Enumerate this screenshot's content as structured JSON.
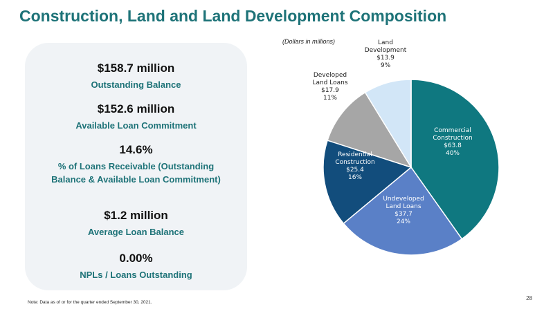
{
  "slide": {
    "title": "Construction, Land and Land Development Composition",
    "units_note": "(Dollars in millions)",
    "footnote": "Note: Data as of or for the quarter ended September 30, 2021.",
    "page_number": "28"
  },
  "stats": [
    {
      "value": "$158.7 million",
      "label": "Outstanding Balance"
    },
    {
      "value": "$152.6 million",
      "label": "Available Loan Commitment"
    },
    {
      "value": "14.6%",
      "label": "% of Loans Receivable (Outstanding Balance & Available Loan Commitment)"
    },
    {
      "value": "$1.2 million",
      "label": "Average Loan Balance"
    },
    {
      "value": "0.00%",
      "label": "NPLs / Loans Outstanding"
    }
  ],
  "chart_data": {
    "type": "pie",
    "title": "",
    "units": "Dollars in millions",
    "start_angle_deg": 0,
    "direction": "clockwise",
    "slices": [
      {
        "name_lines": [
          "Commercial",
          "Construction"
        ],
        "amount": "$63.8",
        "value": 63.8,
        "percent": "40%",
        "color": "#0f7880",
        "text_color": "#ffffff"
      },
      {
        "name_lines": [
          "Undeveloped",
          "Land Loans"
        ],
        "amount": "$37.7",
        "value": 37.7,
        "percent": "24%",
        "color": "#5a80c7",
        "text_color": "#ffffff"
      },
      {
        "name_lines": [
          "Residential",
          "Construction"
        ],
        "amount": "$25.4",
        "value": 25.4,
        "percent": "16%",
        "color": "#124d7c",
        "text_color": "#ffffff"
      },
      {
        "name_lines": [
          "Developed",
          "Land Loans"
        ],
        "amount": "$17.9",
        "value": 17.9,
        "percent": "11%",
        "color": "#a6a6a6",
        "text_color": "#222222"
      },
      {
        "name_lines": [
          "Land",
          "Development"
        ],
        "amount": "$13.9",
        "value": 13.9,
        "percent": "9%",
        "color": "#d2e6f7",
        "text_color": "#222222"
      }
    ]
  }
}
